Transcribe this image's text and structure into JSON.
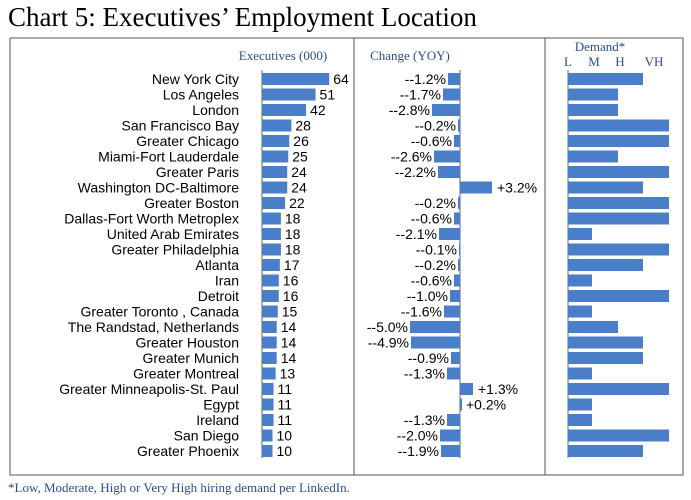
{
  "title": "Chart 5: Executives’ Employment Location",
  "footnote": "*Low, Moderate, High or Very High hiring demand per LinkedIn.",
  "colors": {
    "bar": "#4a7ec8",
    "frame": "#555555",
    "header": "#2a4d8f"
  },
  "chart_data": [
    {
      "type": "bar",
      "orientation": "horizontal",
      "title": "Executives (000)",
      "categories": [
        "New York City",
        "Los Angeles",
        "London",
        "San Francisco Bay",
        "Greater Chicago",
        "Miami-Fort Lauderdale",
        "Greater Paris",
        "Washington DC-Baltimore",
        "Greater Boston",
        "Dallas-Fort Worth Metroplex",
        "United Arab Emirates",
        "Greater Philadelphia",
        "Atlanta",
        "Iran",
        "Detroit",
        "Greater Toronto , Canada",
        "The Randstad, Netherlands",
        "Greater Houston",
        "Greater Munich",
        "Greater Montreal",
        "Greater Minneapolis-St. Paul",
        "Egypt",
        "Ireland",
        "San Diego",
        "Greater Phoenix"
      ],
      "values": [
        64,
        51,
        42,
        28,
        26,
        25,
        24,
        24,
        22,
        18,
        18,
        18,
        17,
        16,
        16,
        15,
        14,
        14,
        14,
        13,
        11,
        11,
        11,
        10,
        10
      ],
      "xlim": [
        0,
        70
      ]
    },
    {
      "type": "bar",
      "orientation": "horizontal",
      "title": "Change (YOY)",
      "values": [
        -1.2,
        -1.7,
        -2.8,
        -0.2,
        -0.6,
        -2.6,
        -2.2,
        3.2,
        -0.2,
        -0.6,
        -2.1,
        -0.1,
        -0.2,
        -0.6,
        -1.0,
        -1.6,
        -5.0,
        -4.9,
        -0.9,
        -1.3,
        1.3,
        0.2,
        -1.3,
        -2.0,
        -1.9
      ],
      "labels": [
        "--1.2%",
        "--1.7%",
        "--2.8%",
        "--0.2%",
        "--0.6%",
        "--2.6%",
        "--2.2%",
        "+3.2%",
        "--0.2%",
        "--0.6%",
        "--2.1%",
        "--0.1%",
        "--0.2%",
        "--0.6%",
        "--1.0%",
        "--1.6%",
        "--5.0%",
        "--4.9%",
        "--0.9%",
        "--1.3%",
        "+1.3%",
        "+0.2%",
        "--1.3%",
        "--2.0%",
        "--1.9%"
      ],
      "xlim": [
        -5.5,
        4.5
      ]
    },
    {
      "type": "bar",
      "orientation": "horizontal",
      "title": "Demand*",
      "levels": [
        "L",
        "M",
        "H",
        "VH"
      ],
      "values": [
        "H",
        "M",
        "M",
        "VH",
        "VH",
        "M",
        "VH",
        "H",
        "VH",
        "VH",
        "L",
        "VH",
        "H",
        "L",
        "VH",
        "L",
        "M",
        "H",
        "H",
        "L",
        "VH",
        "L",
        "L",
        "VH",
        "H"
      ]
    }
  ]
}
